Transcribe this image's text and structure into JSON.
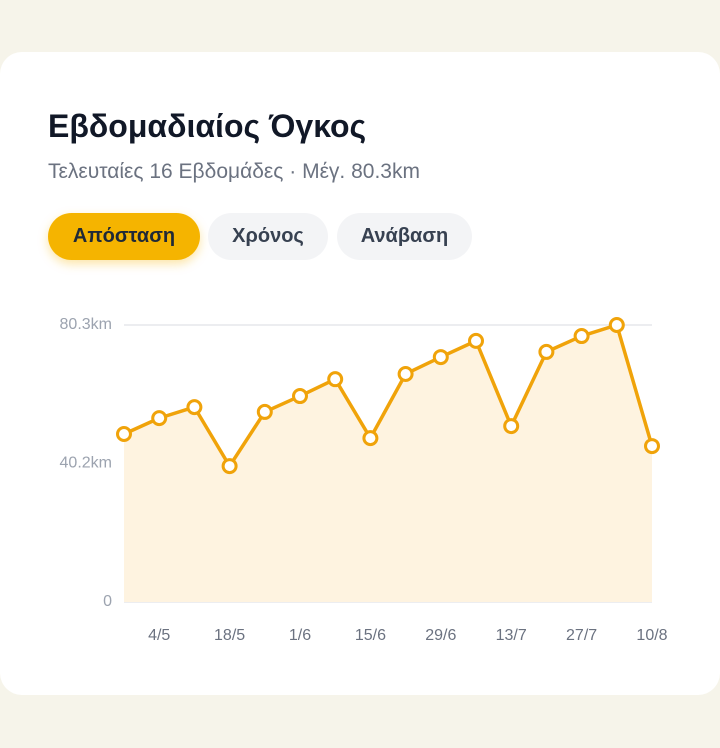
{
  "header": {
    "title": "Εβδομαδιαίος Όγκος",
    "subtitle": "Τελευταίες 16 Εβδομάδες · Μέγ. 80.3km"
  },
  "tabs": {
    "items": [
      "Απόσταση",
      "Χρόνος",
      "Ανάβαση"
    ],
    "active": 0
  },
  "chart_data": {
    "type": "line",
    "categories": [
      null,
      "4/5",
      null,
      "18/5",
      null,
      "1/6",
      null,
      "15/6",
      null,
      "29/6",
      null,
      "13/7",
      null,
      "27/7",
      null,
      "10/8"
    ],
    "values": [
      48.7,
      53.3,
      56.5,
      39.4,
      55.1,
      59.7,
      64.6,
      47.5,
      66.1,
      71.0,
      75.7,
      51.0,
      72.5,
      77.1,
      80.3,
      45.2
    ],
    "color": "#f0a30a",
    "area_color": "#fef3e0",
    "ylim": [
      0,
      80.3
    ],
    "yticks": [
      0,
      {
        "value": 40.2,
        "label": "40.2km"
      },
      {
        "value": 80.3,
        "label": "80.3km"
      }
    ],
    "grid": true
  }
}
